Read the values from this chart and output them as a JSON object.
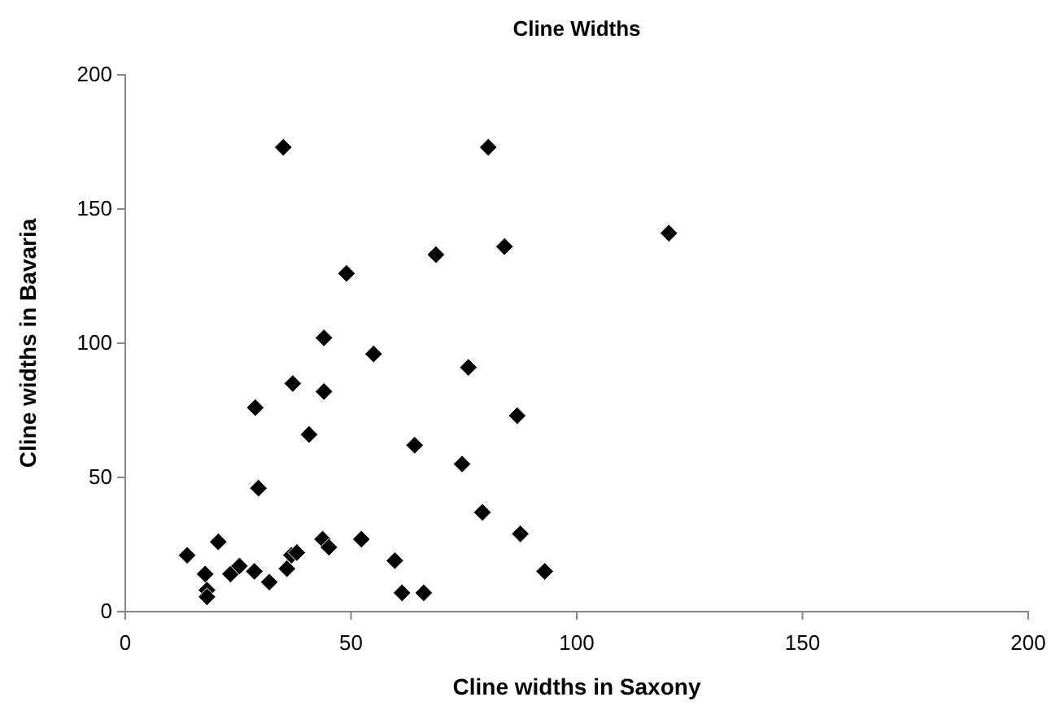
{
  "chart_data": {
    "type": "scatter",
    "title": "Cline Widths",
    "xlabel": "Cline widths in Saxony",
    "ylabel": "Cline widths in Bavaria",
    "x": [
      13.7,
      17.7,
      18.1,
      18.1,
      20.6,
      23.3,
      25.3,
      28.6,
      31.9,
      35.8,
      36.8,
      38,
      43.7,
      45.1,
      52.3,
      59.7,
      61.3,
      66.1,
      79.1,
      87.5,
      92.9,
      29.5,
      35,
      80.4,
      120.4,
      84,
      68.8,
      49,
      44,
      44,
      37.1,
      55,
      76,
      86.8,
      28.8,
      40.7,
      64.1,
      74.6
    ],
    "series": [
      {
        "color": "#000000",
        "values": [
          21,
          14,
          8,
          5.5,
          26,
          14,
          17,
          15,
          11,
          16,
          21,
          22,
          27,
          24,
          27,
          19,
          7,
          7,
          37,
          29,
          15,
          46,
          173,
          173,
          141,
          136,
          133,
          126,
          102,
          82,
          85,
          96,
          91,
          73,
          76,
          66,
          62,
          55
        ]
      }
    ],
    "xlim": [
      0,
      200
    ],
    "ylim": [
      0,
      200
    ],
    "xticks": [
      0,
      50,
      100,
      150,
      200
    ],
    "yticks": [
      0,
      50,
      100,
      150,
      200
    ],
    "marker": "diamond",
    "grid": false
  }
}
